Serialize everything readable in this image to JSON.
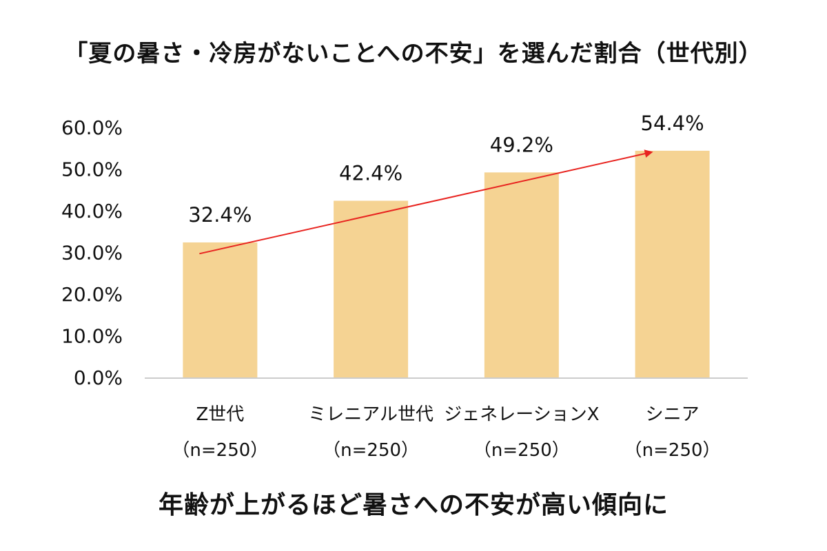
{
  "chart_data": {
    "type": "bar",
    "title": "「夏の暑さ・冷房がないことへの不安」を選んだ割合（世代別）",
    "caption": "年齢が上がるほど暑さへの不安が高い傾向に",
    "categories": [
      "Z世代",
      "ミレニアル世代",
      "ジェネレーションX",
      "シニア"
    ],
    "sample_sizes": [
      "（n=250）",
      "（n=250）",
      "（n=250）",
      "（n=250）"
    ],
    "values": [
      32.4,
      42.4,
      49.2,
      54.4
    ],
    "data_labels": [
      "32.4%",
      "42.4%",
      "49.2%",
      "54.4%"
    ],
    "ylim": [
      0,
      60
    ],
    "yticks": [
      "0.0%",
      "10.0%",
      "20.0%",
      "30.0%",
      "40.0%",
      "50.0%",
      "60.0%"
    ],
    "grid": false,
    "legend": "none",
    "trend_arrow": {
      "from_category": 0,
      "to_category": 3,
      "from_value": 29.7,
      "to_value": 54.4
    },
    "colors": {
      "bar": "#f5d393",
      "axis": "#cccccc",
      "arrow": "#e8231f"
    }
  }
}
